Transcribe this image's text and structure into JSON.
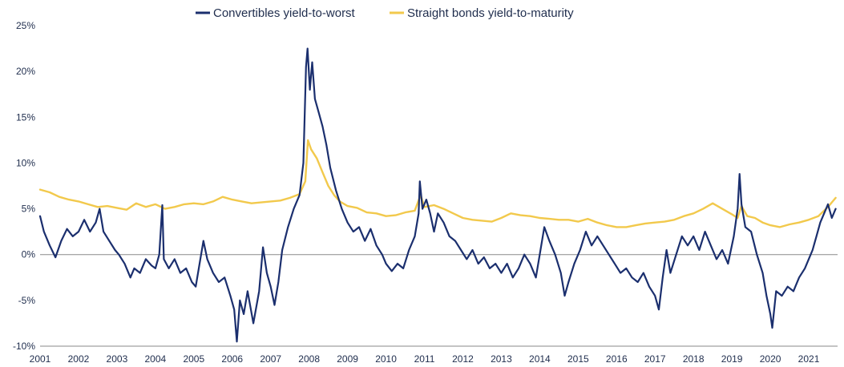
{
  "chart_data": {
    "type": "line",
    "title": "",
    "xlabel": "",
    "ylabel": "",
    "xlim": [
      2001,
      2021.75
    ],
    "ylim": [
      -10,
      25
    ],
    "x_ticks": [
      2001,
      2002,
      2003,
      2004,
      2005,
      2006,
      2007,
      2008,
      2009,
      2010,
      2011,
      2012,
      2013,
      2014,
      2015,
      2016,
      2017,
      2018,
      2019,
      2020,
      2021
    ],
    "x_tick_labels": [
      "2001",
      "2002",
      "2003",
      "2004",
      "2005",
      "2006",
      "2007",
      "2008",
      "2009",
      "2010",
      "2011",
      "2012",
      "2013",
      "2014",
      "2015",
      "2016",
      "2017",
      "2018",
      "2019",
      "2020",
      "2021"
    ],
    "y_ticks": [
      -10,
      -5,
      0,
      5,
      10,
      15,
      20,
      25
    ],
    "y_tick_labels": [
      "-10%",
      "-5%",
      "0%",
      "5%",
      "10%",
      "15%",
      "20%",
      "25%"
    ],
    "zero_line": true,
    "grid": false,
    "legend_position": "top-center",
    "series": [
      {
        "name": "Convertibles yield-to-worst",
        "color": "#1b2f6e",
        "points": [
          [
            2001.0,
            4.2
          ],
          [
            2001.1,
            2.5
          ],
          [
            2001.25,
            1.0
          ],
          [
            2001.4,
            -0.3
          ],
          [
            2001.55,
            1.5
          ],
          [
            2001.7,
            2.8
          ],
          [
            2001.85,
            2.0
          ],
          [
            2002.0,
            2.5
          ],
          [
            2002.15,
            3.8
          ],
          [
            2002.3,
            2.5
          ],
          [
            2002.45,
            3.5
          ],
          [
            2002.55,
            5.0
          ],
          [
            2002.65,
            2.5
          ],
          [
            2002.8,
            1.5
          ],
          [
            2002.95,
            0.5
          ],
          [
            2003.05,
            0.0
          ],
          [
            2003.2,
            -1.0
          ],
          [
            2003.35,
            -2.5
          ],
          [
            2003.45,
            -1.5
          ],
          [
            2003.6,
            -2.0
          ],
          [
            2003.75,
            -0.5
          ],
          [
            2003.9,
            -1.2
          ],
          [
            2004.0,
            -1.5
          ],
          [
            2004.1,
            0.0
          ],
          [
            2004.18,
            5.4
          ],
          [
            2004.22,
            -0.5
          ],
          [
            2004.35,
            -1.5
          ],
          [
            2004.5,
            -0.5
          ],
          [
            2004.65,
            -2.0
          ],
          [
            2004.8,
            -1.5
          ],
          [
            2004.95,
            -3.0
          ],
          [
            2005.05,
            -3.5
          ],
          [
            2005.15,
            -1.0
          ],
          [
            2005.25,
            1.5
          ],
          [
            2005.35,
            -0.5
          ],
          [
            2005.5,
            -2.0
          ],
          [
            2005.65,
            -3.0
          ],
          [
            2005.8,
            -2.5
          ],
          [
            2005.95,
            -4.5
          ],
          [
            2006.05,
            -6.0
          ],
          [
            2006.12,
            -9.5
          ],
          [
            2006.2,
            -5.0
          ],
          [
            2006.3,
            -6.5
          ],
          [
            2006.4,
            -4.0
          ],
          [
            2006.55,
            -7.5
          ],
          [
            2006.7,
            -4.0
          ],
          [
            2006.8,
            0.8
          ],
          [
            2006.9,
            -2.0
          ],
          [
            2007.0,
            -3.5
          ],
          [
            2007.1,
            -5.5
          ],
          [
            2007.2,
            -3.0
          ],
          [
            2007.3,
            0.5
          ],
          [
            2007.45,
            3.0
          ],
          [
            2007.6,
            5.0
          ],
          [
            2007.75,
            6.5
          ],
          [
            2007.85,
            10.0
          ],
          [
            2007.92,
            20.5
          ],
          [
            2007.96,
            22.5
          ],
          [
            2008.02,
            18.0
          ],
          [
            2008.08,
            21.0
          ],
          [
            2008.15,
            17.0
          ],
          [
            2008.25,
            15.5
          ],
          [
            2008.35,
            14.0
          ],
          [
            2008.45,
            12.0
          ],
          [
            2008.55,
            9.5
          ],
          [
            2008.7,
            7.0
          ],
          [
            2008.85,
            5.0
          ],
          [
            2009.0,
            3.5
          ],
          [
            2009.15,
            2.5
          ],
          [
            2009.3,
            3.0
          ],
          [
            2009.45,
            1.5
          ],
          [
            2009.6,
            2.8
          ],
          [
            2009.75,
            1.0
          ],
          [
            2009.9,
            0.0
          ],
          [
            2010.0,
            -1.0
          ],
          [
            2010.15,
            -1.8
          ],
          [
            2010.3,
            -1.0
          ],
          [
            2010.45,
            -1.5
          ],
          [
            2010.6,
            0.5
          ],
          [
            2010.75,
            2.0
          ],
          [
            2010.85,
            4.5
          ],
          [
            2010.88,
            8.0
          ],
          [
            2010.95,
            5.0
          ],
          [
            2011.05,
            6.0
          ],
          [
            2011.15,
            4.5
          ],
          [
            2011.25,
            2.5
          ],
          [
            2011.35,
            4.5
          ],
          [
            2011.5,
            3.5
          ],
          [
            2011.65,
            2.0
          ],
          [
            2011.8,
            1.5
          ],
          [
            2011.95,
            0.5
          ],
          [
            2012.1,
            -0.5
          ],
          [
            2012.25,
            0.5
          ],
          [
            2012.4,
            -1.0
          ],
          [
            2012.55,
            -0.3
          ],
          [
            2012.7,
            -1.5
          ],
          [
            2012.85,
            -1.0
          ],
          [
            2013.0,
            -2.0
          ],
          [
            2013.15,
            -1.0
          ],
          [
            2013.3,
            -2.5
          ],
          [
            2013.45,
            -1.5
          ],
          [
            2013.6,
            0.0
          ],
          [
            2013.75,
            -1.0
          ],
          [
            2013.9,
            -2.5
          ],
          [
            2014.0,
            0.0
          ],
          [
            2014.12,
            3.0
          ],
          [
            2014.25,
            1.5
          ],
          [
            2014.4,
            0.0
          ],
          [
            2014.55,
            -2.0
          ],
          [
            2014.65,
            -4.5
          ],
          [
            2014.75,
            -3.0
          ],
          [
            2014.9,
            -1.0
          ],
          [
            2015.05,
            0.5
          ],
          [
            2015.2,
            2.5
          ],
          [
            2015.35,
            1.0
          ],
          [
            2015.5,
            2.0
          ],
          [
            2015.65,
            1.0
          ],
          [
            2015.8,
            0.0
          ],
          [
            2015.95,
            -1.0
          ],
          [
            2016.1,
            -2.0
          ],
          [
            2016.25,
            -1.5
          ],
          [
            2016.4,
            -2.5
          ],
          [
            2016.55,
            -3.0
          ],
          [
            2016.7,
            -2.0
          ],
          [
            2016.85,
            -3.5
          ],
          [
            2017.0,
            -4.5
          ],
          [
            2017.1,
            -6.0
          ],
          [
            2017.2,
            -2.5
          ],
          [
            2017.3,
            0.5
          ],
          [
            2017.4,
            -2.0
          ],
          [
            2017.55,
            0.0
          ],
          [
            2017.7,
            2.0
          ],
          [
            2017.85,
            1.0
          ],
          [
            2018.0,
            2.0
          ],
          [
            2018.15,
            0.5
          ],
          [
            2018.3,
            2.5
          ],
          [
            2018.45,
            1.0
          ],
          [
            2018.6,
            -0.5
          ],
          [
            2018.75,
            0.5
          ],
          [
            2018.9,
            -1.0
          ],
          [
            2019.05,
            2.0
          ],
          [
            2019.15,
            5.0
          ],
          [
            2019.2,
            8.8
          ],
          [
            2019.25,
            5.5
          ],
          [
            2019.35,
            3.0
          ],
          [
            2019.5,
            2.5
          ],
          [
            2019.65,
            0.0
          ],
          [
            2019.8,
            -2.0
          ],
          [
            2019.9,
            -4.5
          ],
          [
            2020.0,
            -6.5
          ],
          [
            2020.05,
            -8.0
          ],
          [
            2020.15,
            -4.0
          ],
          [
            2020.3,
            -4.5
          ],
          [
            2020.45,
            -3.5
          ],
          [
            2020.6,
            -4.0
          ],
          [
            2020.75,
            -2.5
          ],
          [
            2020.9,
            -1.5
          ],
          [
            2021.0,
            -0.5
          ],
          [
            2021.1,
            0.5
          ],
          [
            2021.2,
            2.0
          ],
          [
            2021.3,
            3.5
          ],
          [
            2021.4,
            4.5
          ],
          [
            2021.5,
            5.5
          ],
          [
            2021.6,
            4.0
          ],
          [
            2021.7,
            5.0
          ]
        ]
      },
      {
        "name": "Straight bonds yield-to-maturity",
        "color": "#f2c94c",
        "points": [
          [
            2001.0,
            7.1
          ],
          [
            2001.25,
            6.8
          ],
          [
            2001.5,
            6.3
          ],
          [
            2001.75,
            6.0
          ],
          [
            2002.0,
            5.8
          ],
          [
            2002.25,
            5.5
          ],
          [
            2002.5,
            5.2
          ],
          [
            2002.75,
            5.3
          ],
          [
            2003.0,
            5.1
          ],
          [
            2003.25,
            4.9
          ],
          [
            2003.5,
            5.6
          ],
          [
            2003.75,
            5.2
          ],
          [
            2004.0,
            5.5
          ],
          [
            2004.25,
            5.0
          ],
          [
            2004.5,
            5.2
          ],
          [
            2004.75,
            5.5
          ],
          [
            2005.0,
            5.6
          ],
          [
            2005.25,
            5.5
          ],
          [
            2005.5,
            5.8
          ],
          [
            2005.75,
            6.3
          ],
          [
            2006.0,
            6.0
          ],
          [
            2006.25,
            5.8
          ],
          [
            2006.5,
            5.6
          ],
          [
            2006.75,
            5.7
          ],
          [
            2007.0,
            5.8
          ],
          [
            2007.25,
            5.9
          ],
          [
            2007.5,
            6.2
          ],
          [
            2007.75,
            6.6
          ],
          [
            2007.9,
            8.0
          ],
          [
            2007.97,
            12.5
          ],
          [
            2008.05,
            11.5
          ],
          [
            2008.2,
            10.5
          ],
          [
            2008.35,
            9.0
          ],
          [
            2008.5,
            7.5
          ],
          [
            2008.65,
            6.5
          ],
          [
            2008.8,
            5.8
          ],
          [
            2009.0,
            5.3
          ],
          [
            2009.25,
            5.1
          ],
          [
            2009.5,
            4.6
          ],
          [
            2009.75,
            4.5
          ],
          [
            2010.0,
            4.2
          ],
          [
            2010.25,
            4.3
          ],
          [
            2010.5,
            4.6
          ],
          [
            2010.75,
            4.8
          ],
          [
            2010.9,
            6.5
          ],
          [
            2011.0,
            5.2
          ],
          [
            2011.25,
            5.4
          ],
          [
            2011.5,
            5.0
          ],
          [
            2011.75,
            4.5
          ],
          [
            2012.0,
            4.0
          ],
          [
            2012.25,
            3.8
          ],
          [
            2012.5,
            3.7
          ],
          [
            2012.75,
            3.6
          ],
          [
            2013.0,
            4.0
          ],
          [
            2013.25,
            4.5
          ],
          [
            2013.5,
            4.3
          ],
          [
            2013.75,
            4.2
          ],
          [
            2014.0,
            4.0
          ],
          [
            2014.25,
            3.9
          ],
          [
            2014.5,
            3.8
          ],
          [
            2014.75,
            3.8
          ],
          [
            2015.0,
            3.6
          ],
          [
            2015.25,
            3.9
          ],
          [
            2015.5,
            3.5
          ],
          [
            2015.75,
            3.2
          ],
          [
            2016.0,
            3.0
          ],
          [
            2016.25,
            3.0
          ],
          [
            2016.5,
            3.2
          ],
          [
            2016.75,
            3.4
          ],
          [
            2017.0,
            3.5
          ],
          [
            2017.25,
            3.6
          ],
          [
            2017.5,
            3.8
          ],
          [
            2017.75,
            4.2
          ],
          [
            2018.0,
            4.5
          ],
          [
            2018.25,
            5.0
          ],
          [
            2018.5,
            5.6
          ],
          [
            2018.75,
            5.0
          ],
          [
            2019.0,
            4.4
          ],
          [
            2019.15,
            4.0
          ],
          [
            2019.25,
            5.3
          ],
          [
            2019.4,
            4.2
          ],
          [
            2019.6,
            4.0
          ],
          [
            2019.8,
            3.5
          ],
          [
            2020.0,
            3.2
          ],
          [
            2020.25,
            3.0
          ],
          [
            2020.5,
            3.3
          ],
          [
            2020.75,
            3.5
          ],
          [
            2021.0,
            3.8
          ],
          [
            2021.25,
            4.2
          ],
          [
            2021.5,
            5.2
          ],
          [
            2021.7,
            6.2
          ]
        ]
      }
    ]
  }
}
